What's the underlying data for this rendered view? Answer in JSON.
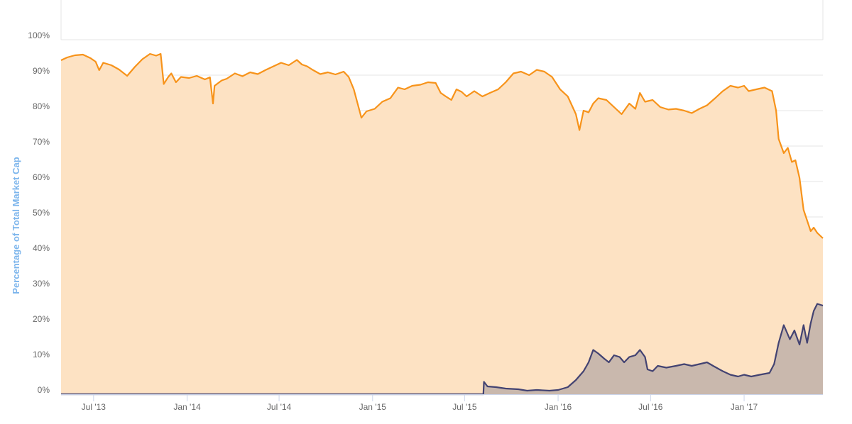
{
  "chart_data": {
    "type": "area",
    "title": "",
    "xlabel": "",
    "ylabel": "Percentage of Total Market Cap",
    "ylim": [
      0,
      100
    ],
    "xlim": [
      "2013-04-28",
      "2017-06-05"
    ],
    "grid": true,
    "y_ticks": [
      {
        "value": 0,
        "label": "0%"
      },
      {
        "value": 10,
        "label": "10%"
      },
      {
        "value": 20,
        "label": "20%"
      },
      {
        "value": 30,
        "label": "30%"
      },
      {
        "value": 40,
        "label": "40%"
      },
      {
        "value": 50,
        "label": "50%"
      },
      {
        "value": 60,
        "label": "60%"
      },
      {
        "value": 70,
        "label": "70%"
      },
      {
        "value": 80,
        "label": "80%"
      },
      {
        "value": 90,
        "label": "90%"
      },
      {
        "value": 100,
        "label": "100%"
      }
    ],
    "x_ticks": [
      {
        "value": "2013-07-01",
        "label": "Jul '13"
      },
      {
        "value": "2014-01-01",
        "label": "Jan '14"
      },
      {
        "value": "2014-07-01",
        "label": "Jul '14"
      },
      {
        "value": "2015-01-01",
        "label": "Jan '15"
      },
      {
        "value": "2015-07-01",
        "label": "Jul '15"
      },
      {
        "value": "2016-01-01",
        "label": "Jan '16"
      },
      {
        "value": "2016-07-01",
        "label": "Jul '16"
      },
      {
        "value": "2017-01-01",
        "label": "Jan '17"
      }
    ],
    "colors": {
      "series_1_line": "#f7931a",
      "series_1_fill": "#fde2c3",
      "series_2_line": "#434372",
      "series_2_fill": "#c9b8ad",
      "grid": "#e6e6e6",
      "axis": "#ccd6eb",
      "tick_text": "#666666",
      "axis_title": "#7cb5ec"
    },
    "series": [
      {
        "points": [
          [
            "2013-04-28",
            94.2
          ],
          [
            "2013-05-10",
            95.0
          ],
          [
            "2013-05-25",
            95.6
          ],
          [
            "2013-06-10",
            95.8
          ],
          [
            "2013-06-25",
            94.8
          ],
          [
            "2013-07-05",
            93.8
          ],
          [
            "2013-07-12",
            91.4
          ],
          [
            "2013-07-20",
            93.5
          ],
          [
            "2013-08-05",
            92.8
          ],
          [
            "2013-08-20",
            91.6
          ],
          [
            "2013-09-05",
            89.8
          ],
          [
            "2013-09-20",
            92.3
          ],
          [
            "2013-10-05",
            94.5
          ],
          [
            "2013-10-20",
            96.0
          ],
          [
            "2013-11-01",
            95.5
          ],
          [
            "2013-11-10",
            96.0
          ],
          [
            "2013-11-16",
            87.5
          ],
          [
            "2013-11-25",
            89.5
          ],
          [
            "2013-12-01",
            90.5
          ],
          [
            "2013-12-10",
            88.0
          ],
          [
            "2013-12-20",
            89.5
          ],
          [
            "2014-01-05",
            89.2
          ],
          [
            "2014-01-20",
            89.8
          ],
          [
            "2014-02-05",
            88.8
          ],
          [
            "2014-02-15",
            89.4
          ],
          [
            "2014-02-21",
            82.0
          ],
          [
            "2014-02-24",
            87.0
          ],
          [
            "2014-03-10",
            88.5
          ],
          [
            "2014-03-20",
            89.0
          ],
          [
            "2014-04-05",
            90.5
          ],
          [
            "2014-04-20",
            89.7
          ],
          [
            "2014-05-05",
            90.8
          ],
          [
            "2014-05-20",
            90.3
          ],
          [
            "2014-06-05",
            91.5
          ],
          [
            "2014-06-20",
            92.5
          ],
          [
            "2014-07-05",
            93.5
          ],
          [
            "2014-07-20",
            92.8
          ],
          [
            "2014-08-05",
            94.3
          ],
          [
            "2014-08-15",
            93.0
          ],
          [
            "2014-08-25",
            92.5
          ],
          [
            "2014-09-05",
            91.5
          ],
          [
            "2014-09-20",
            90.3
          ],
          [
            "2014-10-05",
            90.8
          ],
          [
            "2014-10-20",
            90.2
          ],
          [
            "2014-11-05",
            91.0
          ],
          [
            "2014-11-15",
            89.5
          ],
          [
            "2014-11-25",
            86.0
          ],
          [
            "2014-12-10",
            78.0
          ],
          [
            "2014-12-20",
            79.8
          ],
          [
            "2015-01-05",
            80.5
          ],
          [
            "2015-01-20",
            82.5
          ],
          [
            "2015-02-05",
            83.5
          ],
          [
            "2015-02-20",
            86.5
          ],
          [
            "2015-03-05",
            86.0
          ],
          [
            "2015-03-20",
            87.0
          ],
          [
            "2015-04-05",
            87.3
          ],
          [
            "2015-04-20",
            88.0
          ],
          [
            "2015-05-05",
            87.8
          ],
          [
            "2015-05-15",
            85.0
          ],
          [
            "2015-05-25",
            84.0
          ],
          [
            "2015-06-05",
            83.0
          ],
          [
            "2015-06-15",
            86.0
          ],
          [
            "2015-06-25",
            85.3
          ],
          [
            "2015-07-05",
            84.0
          ],
          [
            "2015-07-20",
            85.5
          ],
          [
            "2015-08-05",
            84.0
          ],
          [
            "2015-08-20",
            85.0
          ],
          [
            "2015-09-05",
            86.0
          ],
          [
            "2015-09-20",
            88.0
          ],
          [
            "2015-10-05",
            90.5
          ],
          [
            "2015-10-20",
            91.0
          ],
          [
            "2015-11-05",
            90.0
          ],
          [
            "2015-11-20",
            91.5
          ],
          [
            "2015-12-05",
            91.0
          ],
          [
            "2015-12-20",
            89.5
          ],
          [
            "2016-01-05",
            86.0
          ],
          [
            "2016-01-20",
            84.0
          ],
          [
            "2016-02-05",
            79.0
          ],
          [
            "2016-02-12",
            74.5
          ],
          [
            "2016-02-20",
            80.0
          ],
          [
            "2016-03-01",
            79.5
          ],
          [
            "2016-03-10",
            82.0
          ],
          [
            "2016-03-20",
            83.5
          ],
          [
            "2016-04-05",
            83.0
          ],
          [
            "2016-04-20",
            81.0
          ],
          [
            "2016-05-05",
            79.0
          ],
          [
            "2016-05-20",
            82.0
          ],
          [
            "2016-06-01",
            80.5
          ],
          [
            "2016-06-10",
            85.0
          ],
          [
            "2016-06-20",
            82.5
          ],
          [
            "2016-07-05",
            83.0
          ],
          [
            "2016-07-20",
            81.0
          ],
          [
            "2016-08-05",
            80.3
          ],
          [
            "2016-08-20",
            80.5
          ],
          [
            "2016-09-05",
            80.0
          ],
          [
            "2016-09-20",
            79.3
          ],
          [
            "2016-10-05",
            80.5
          ],
          [
            "2016-10-20",
            81.5
          ],
          [
            "2016-11-05",
            83.5
          ],
          [
            "2016-11-20",
            85.5
          ],
          [
            "2016-12-05",
            87.0
          ],
          [
            "2016-12-20",
            86.5
          ],
          [
            "2017-01-01",
            87.0
          ],
          [
            "2017-01-10",
            85.5
          ],
          [
            "2017-01-25",
            86.0
          ],
          [
            "2017-02-10",
            86.5
          ],
          [
            "2017-02-25",
            85.5
          ],
          [
            "2017-03-05",
            80.0
          ],
          [
            "2017-03-10",
            72.0
          ],
          [
            "2017-03-20",
            68.0
          ],
          [
            "2017-03-28",
            69.5
          ],
          [
            "2017-04-05",
            65.5
          ],
          [
            "2017-04-12",
            66.0
          ],
          [
            "2017-04-20",
            61.0
          ],
          [
            "2017-04-28",
            52.0
          ],
          [
            "2017-05-05",
            49.0
          ],
          [
            "2017-05-12",
            46.0
          ],
          [
            "2017-05-18",
            47.0
          ],
          [
            "2017-05-25",
            45.5
          ],
          [
            "2017-06-05",
            44.0
          ]
        ]
      },
      {
        "points": [
          [
            "2013-04-28",
            0
          ],
          [
            "2015-08-07",
            0
          ],
          [
            "2015-08-08",
            3.5
          ],
          [
            "2015-08-15",
            2.2
          ],
          [
            "2015-09-01",
            2.0
          ],
          [
            "2015-09-20",
            1.6
          ],
          [
            "2015-10-15",
            1.4
          ],
          [
            "2015-11-01",
            1.0
          ],
          [
            "2015-11-20",
            1.2
          ],
          [
            "2015-12-15",
            1.0
          ],
          [
            "2016-01-01",
            1.2
          ],
          [
            "2016-01-20",
            2.0
          ],
          [
            "2016-02-05",
            4.0
          ],
          [
            "2016-02-20",
            6.5
          ],
          [
            "2016-03-01",
            9.0
          ],
          [
            "2016-03-10",
            12.5
          ],
          [
            "2016-03-20",
            11.5
          ],
          [
            "2016-04-01",
            10.0
          ],
          [
            "2016-04-10",
            9.0
          ],
          [
            "2016-04-20",
            11.0
          ],
          [
            "2016-05-01",
            10.5
          ],
          [
            "2016-05-10",
            9.0
          ],
          [
            "2016-05-20",
            10.5
          ],
          [
            "2016-06-01",
            11.0
          ],
          [
            "2016-06-10",
            12.5
          ],
          [
            "2016-06-20",
            10.5
          ],
          [
            "2016-06-25",
            7.0
          ],
          [
            "2016-07-05",
            6.5
          ],
          [
            "2016-07-15",
            8.0
          ],
          [
            "2016-08-01",
            7.5
          ],
          [
            "2016-08-20",
            8.0
          ],
          [
            "2016-09-05",
            8.5
          ],
          [
            "2016-09-20",
            8.0
          ],
          [
            "2016-10-05",
            8.5
          ],
          [
            "2016-10-20",
            9.0
          ],
          [
            "2016-11-01",
            8.0
          ],
          [
            "2016-11-20",
            6.5
          ],
          [
            "2016-12-05",
            5.5
          ],
          [
            "2016-12-20",
            5.0
          ],
          [
            "2017-01-01",
            5.5
          ],
          [
            "2017-01-15",
            5.0
          ],
          [
            "2017-02-01",
            5.5
          ],
          [
            "2017-02-20",
            6.0
          ],
          [
            "2017-03-01",
            8.5
          ],
          [
            "2017-03-10",
            14.5
          ],
          [
            "2017-03-20",
            19.5
          ],
          [
            "2017-04-01",
            15.5
          ],
          [
            "2017-04-10",
            18.0
          ],
          [
            "2017-04-20",
            14.0
          ],
          [
            "2017-04-28",
            19.5
          ],
          [
            "2017-05-05",
            14.5
          ],
          [
            "2017-05-12",
            20.0
          ],
          [
            "2017-05-18",
            23.5
          ],
          [
            "2017-05-25",
            25.5
          ],
          [
            "2017-06-05",
            25.0
          ]
        ]
      }
    ]
  }
}
